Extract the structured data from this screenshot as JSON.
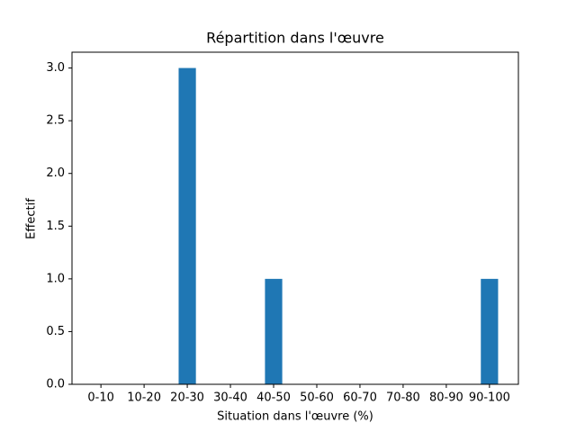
{
  "chart_data": {
    "type": "bar",
    "title": "Répartition dans l'œuvre",
    "x_label": "Situation dans l'œuvre (%)",
    "y_label": "Effectif",
    "categories": [
      "0-10",
      "10-20",
      "20-30",
      "30-40",
      "40-50",
      "50-60",
      "60-70",
      "70-80",
      "80-90",
      "90-100"
    ],
    "values": [
      0,
      0,
      3,
      0,
      1,
      0,
      0,
      0,
      0,
      1
    ],
    "color": "#1f77b4",
    "ylim": [
      0,
      3.15
    ],
    "yticks": [
      {
        "value": 0,
        "label": "0.0"
      },
      {
        "value": 0.5,
        "label": "0.5"
      },
      {
        "value": 1,
        "label": "1.0"
      },
      {
        "value": 1.5,
        "label": "1.5"
      },
      {
        "value": 2,
        "label": "2.0"
      },
      {
        "value": 2.5,
        "label": "2.5"
      },
      {
        "value": 3,
        "label": "3.0"
      }
    ],
    "grid": false
  }
}
